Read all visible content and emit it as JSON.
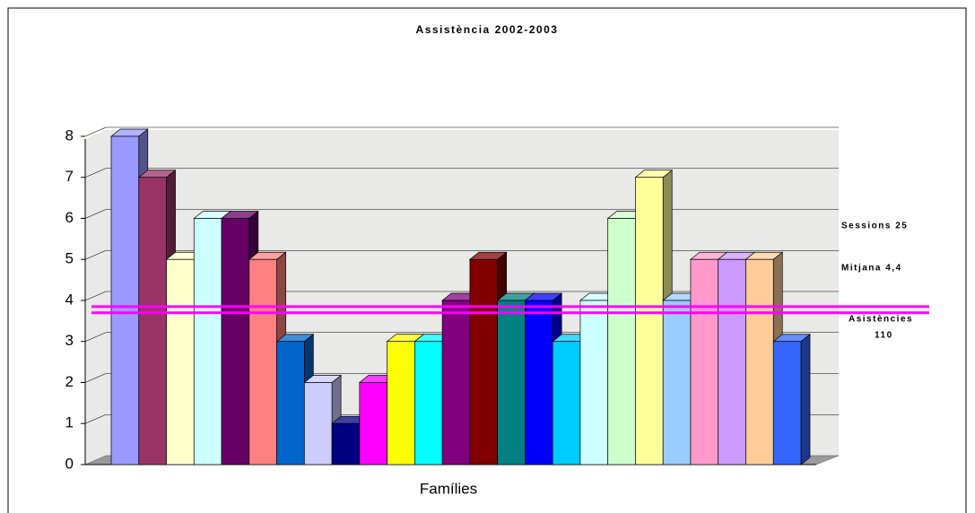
{
  "chart_data": {
    "type": "bar3d",
    "title": "Assistència 2002-2003",
    "x_label": "Famílies",
    "values": [
      8,
      7,
      5,
      6,
      6,
      5,
      3,
      2,
      1,
      2,
      3,
      3,
      4,
      5,
      4,
      4,
      3,
      4,
      6,
      7,
      4,
      5,
      5,
      5,
      3
    ],
    "colors": [
      "#9999ff",
      "#993366",
      "#ffffcc",
      "#ccffff",
      "#660066",
      "#ff8080",
      "#0066cc",
      "#ccccff",
      "#000080",
      "#ff00ff",
      "#ffff00",
      "#00ffff",
      "#800080",
      "#800000",
      "#008080",
      "#0000ff",
      "#00ccff",
      "#ccffff",
      "#ccffcc",
      "#ffff99",
      "#99ccff",
      "#ff99cc",
      "#cc99ff",
      "#ffcc99",
      "#3366ff"
    ],
    "ylim": [
      0,
      8
    ],
    "yticks": [
      0,
      1,
      2,
      3,
      4,
      5,
      6,
      7,
      8
    ],
    "grid": true,
    "reference_lines": [
      3.85,
      3.7
    ],
    "reference_color": "#ff00ff",
    "annotations": [
      "Sessions 25",
      "Mitjana 4,4",
      "Asistències",
      "110"
    ]
  }
}
